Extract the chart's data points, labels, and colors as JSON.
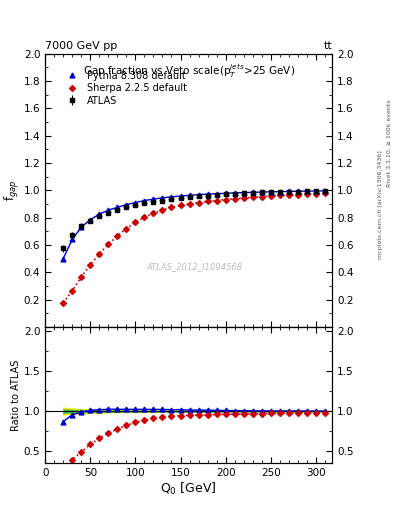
{
  "title_top": "7000 GeV pp",
  "title_top_right": "tt",
  "main_title": "Gap fraction vs Veto scale(p$_T^{jets}$>25 GeV)",
  "watermark": "ATLAS_2012_I1094568",
  "right_label_top": "Rivet 3.1.10, ≥ 100k events",
  "right_label_bot": "mcplots.cern.ch [arXiv:1306.3436]",
  "ylabel_main": "f$_{gap}$",
  "ylabel_ratio": "Ratio to ATLAS",
  "xlabel": "Q$_0$ [GeV]",
  "atlas_x": [
    20,
    30,
    40,
    50,
    60,
    70,
    80,
    90,
    100,
    110,
    120,
    130,
    140,
    150,
    160,
    170,
    180,
    190,
    200,
    210,
    220,
    230,
    240,
    250,
    260,
    270,
    280,
    290,
    300,
    310
  ],
  "atlas_y": [
    0.575,
    0.67,
    0.74,
    0.775,
    0.81,
    0.835,
    0.855,
    0.875,
    0.89,
    0.905,
    0.915,
    0.925,
    0.935,
    0.94,
    0.95,
    0.955,
    0.96,
    0.965,
    0.97,
    0.975,
    0.978,
    0.981,
    0.984,
    0.986,
    0.988,
    0.99,
    0.991,
    0.992,
    0.994,
    0.995
  ],
  "atlas_yerr": [
    0.025,
    0.022,
    0.02,
    0.016,
    0.015,
    0.013,
    0.012,
    0.01,
    0.01,
    0.009,
    0.008,
    0.007,
    0.007,
    0.006,
    0.006,
    0.005,
    0.005,
    0.005,
    0.004,
    0.004,
    0.004,
    0.003,
    0.003,
    0.003,
    0.003,
    0.003,
    0.002,
    0.002,
    0.002,
    0.002
  ],
  "pythia_x": [
    20,
    30,
    40,
    50,
    60,
    70,
    80,
    90,
    100,
    110,
    120,
    130,
    140,
    150,
    160,
    170,
    180,
    190,
    200,
    210,
    220,
    230,
    240,
    250,
    260,
    270,
    280,
    290,
    300,
    310
  ],
  "pythia_y": [
    0.5,
    0.64,
    0.73,
    0.785,
    0.825,
    0.855,
    0.875,
    0.895,
    0.91,
    0.925,
    0.935,
    0.945,
    0.952,
    0.958,
    0.963,
    0.968,
    0.972,
    0.975,
    0.978,
    0.981,
    0.983,
    0.985,
    0.987,
    0.989,
    0.99,
    0.992,
    0.993,
    0.994,
    0.995,
    0.996
  ],
  "sherpa_x": [
    20,
    30,
    40,
    50,
    60,
    70,
    80,
    90,
    100,
    110,
    120,
    130,
    140,
    150,
    160,
    170,
    180,
    190,
    200,
    210,
    220,
    230,
    240,
    250,
    260,
    270,
    280,
    290,
    300,
    310
  ],
  "sherpa_y": [
    0.175,
    0.265,
    0.365,
    0.455,
    0.535,
    0.605,
    0.665,
    0.72,
    0.765,
    0.802,
    0.832,
    0.855,
    0.874,
    0.889,
    0.9,
    0.91,
    0.918,
    0.925,
    0.932,
    0.938,
    0.943,
    0.948,
    0.953,
    0.958,
    0.962,
    0.965,
    0.968,
    0.972,
    0.975,
    0.978
  ],
  "atlas_color": "#000000",
  "pythia_color": "#0000cc",
  "sherpa_color": "#cc0000",
  "xlim": [
    15,
    318
  ],
  "ylim_main": [
    0.0,
    2.0
  ],
  "ylim_ratio": [
    0.35,
    2.05
  ],
  "yticks_main": [
    0.2,
    0.4,
    0.6,
    0.8,
    1.0,
    1.2,
    1.4,
    1.6,
    1.8,
    2.0
  ],
  "yticks_ratio": [
    0.5,
    1.0,
    1.5,
    2.0
  ],
  "xticks": [
    0,
    50,
    100,
    150,
    200,
    250,
    300
  ],
  "band_color_yellow": "#eeee00",
  "band_color_green": "#44bb44"
}
